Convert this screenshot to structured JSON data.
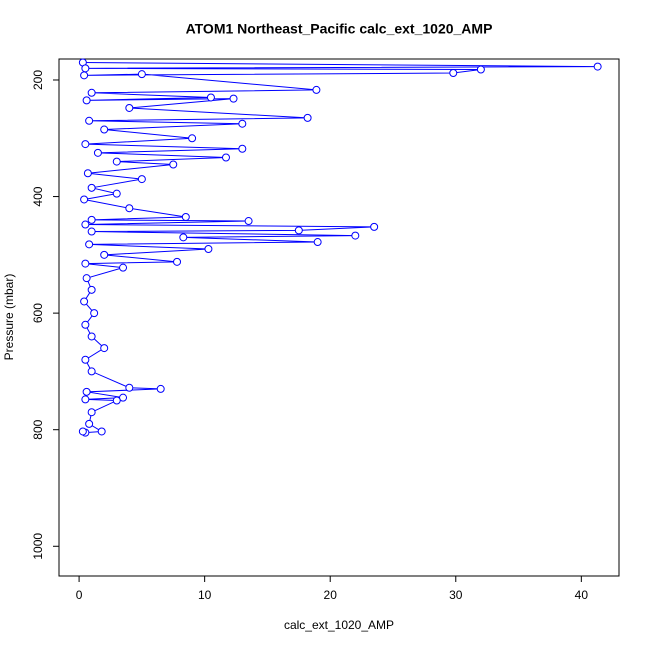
{
  "chart_data": {
    "type": "line",
    "markers": true,
    "title": "ATOM1 Northeast_Pacific calc_ext_1020_AMP",
    "x_label": "calc_ext_1020_AMP",
    "y_label": "Pressure (mbar)",
    "color": "#0000ff",
    "xlim": [
      -1.6,
      43
    ],
    "ylim": [
      1051,
      164
    ],
    "xticks": [
      0,
      10,
      20,
      30,
      40
    ],
    "yticks": [
      200,
      400,
      600,
      800,
      1000
    ],
    "x": [
      0.3,
      41.3,
      0.5,
      32,
      29.8,
      0.4,
      5,
      18.9,
      1,
      10.5,
      0.6,
      12.3,
      4,
      18.2,
      0.8,
      13,
      2,
      9,
      0.5,
      13,
      1.5,
      11.7,
      3,
      7.5,
      0.7,
      5,
      1,
      3,
      0.4,
      4,
      8.5,
      1,
      13.5,
      0.5,
      23.5,
      17.5,
      1,
      22,
      8.3,
      19,
      0.8,
      10.3,
      2,
      7.8,
      0.5,
      3.5,
      0.6,
      1,
      0.4,
      1.2,
      0.5,
      1,
      2,
      0.5,
      1,
      4,
      6.5,
      0.6,
      3.5,
      0.5,
      3,
      1,
      0.8,
      1.8,
      0.5,
      0.3
    ],
    "y": [
      170,
      177,
      180,
      182,
      188,
      192,
      190,
      217,
      222,
      230,
      235,
      232,
      248,
      265,
      270,
      275,
      285,
      300,
      310,
      318,
      325,
      333,
      340,
      345,
      360,
      370,
      385,
      395,
      405,
      420,
      435,
      440,
      442,
      448,
      452,
      458,
      460,
      467,
      470,
      478,
      482,
      490,
      500,
      512,
      515,
      522,
      540,
      560,
      580,
      600,
      620,
      640,
      660,
      680,
      700,
      728,
      730,
      735,
      745,
      748,
      750,
      770,
      790,
      803,
      805,
      803
    ]
  }
}
